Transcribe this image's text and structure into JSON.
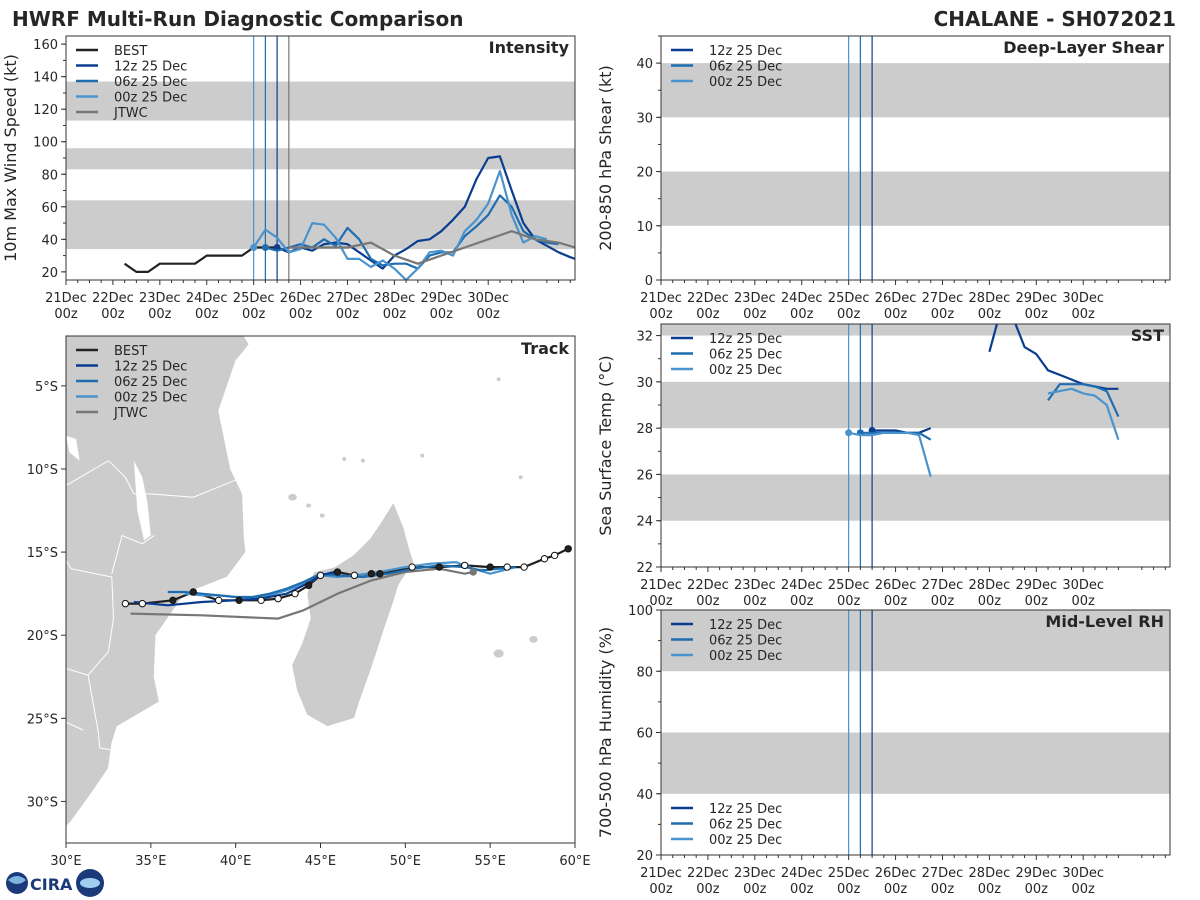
{
  "header": {
    "left_title": "HWRF Multi-Run Diagnostic Comparison",
    "right_title": "CHALANE - SH072021"
  },
  "logo": {
    "text": "CIRA"
  },
  "colors": {
    "best": "#222222",
    "run12z": "#0a3d8f",
    "run06z": "#1f6db0",
    "run00z": "#4a93cc",
    "jtwc": "#777777",
    "band": "#cccccc",
    "land": "#cccccc"
  },
  "time_axis": {
    "tick_labels": [
      [
        "21Dec",
        "00z"
      ],
      [
        "22Dec",
        "00z"
      ],
      [
        "23Dec",
        "00z"
      ],
      [
        "24Dec",
        "00z"
      ],
      [
        "25Dec",
        "00z"
      ],
      [
        "26Dec",
        "00z"
      ],
      [
        "27Dec",
        "00z"
      ],
      [
        "28Dec",
        "00z"
      ],
      [
        "29Dec",
        "00z"
      ],
      [
        "30Dec",
        "00z"
      ]
    ]
  },
  "chart_data": [
    {
      "id": "intensity",
      "type": "line",
      "title": "Intensity",
      "ylabel": "10m Max Wind Speed (kt)",
      "xlim_days": [
        0,
        10.85
      ],
      "ylim": [
        15,
        165
      ],
      "yticks": [
        20,
        40,
        60,
        80,
        100,
        120,
        140,
        160
      ],
      "bands": [
        [
          34,
          64
        ],
        [
          83,
          96
        ],
        [
          113,
          137
        ]
      ],
      "init_lines_days": [
        4.0,
        4.25,
        4.5,
        4.75
      ],
      "legend": [
        "BEST",
        "12z 25 Dec",
        "06z 25 Dec",
        "00z 25 Dec",
        "JTWC"
      ],
      "series": [
        {
          "name": "BEST",
          "color_key": "best",
          "x": [
            1.25,
            1.5,
            1.75,
            2.0,
            2.25,
            2.5,
            2.75,
            3.0,
            3.25,
            3.5,
            3.75,
            4.0,
            4.25,
            4.5
          ],
          "y": [
            25,
            20,
            20,
            25,
            25,
            25,
            25,
            30,
            30,
            30,
            30,
            35,
            35,
            35
          ]
        },
        {
          "name": "12z 25 Dec",
          "color_key": "run12z",
          "x": [
            4.5,
            4.75,
            5.0,
            5.25,
            5.5,
            5.75,
            6.0,
            6.25,
            6.5,
            6.75,
            7.0,
            7.25,
            7.5,
            7.75,
            8.0,
            8.25,
            8.5,
            8.75,
            9.0,
            9.25,
            9.5,
            9.75,
            10.0,
            10.25,
            10.5,
            10.75,
            10.85
          ],
          "y": [
            35,
            32,
            35,
            33,
            37,
            38,
            37,
            32,
            27,
            22,
            30,
            34,
            39,
            40,
            45,
            52,
            60,
            77,
            90,
            91,
            70,
            50,
            40,
            36,
            32,
            29,
            28
          ]
        },
        {
          "name": "06z 25 Dec",
          "color_key": "run06z",
          "x": [
            4.25,
            4.5,
            4.75,
            5.0,
            5.25,
            5.5,
            5.75,
            6.0,
            6.25,
            6.5,
            6.75,
            7.0,
            7.25,
            7.5,
            7.75,
            8.0,
            8.25,
            8.5,
            8.75,
            9.0,
            9.25,
            9.5,
            9.75,
            10.0,
            10.25,
            10.5
          ],
          "y": [
            35,
            33,
            35,
            37,
            35,
            40,
            36,
            47,
            40,
            28,
            24,
            25,
            25,
            22,
            30,
            32,
            32,
            42,
            48,
            55,
            67,
            60,
            45,
            40,
            38,
            37
          ]
        },
        {
          "name": "00z 25 Dec",
          "color_key": "run00z",
          "x": [
            4.0,
            4.25,
            4.5,
            4.75,
            5.0,
            5.25,
            5.5,
            5.75,
            6.0,
            6.25,
            6.5,
            6.75,
            7.0,
            7.25,
            7.5,
            7.75,
            8.0,
            8.25,
            8.5,
            8.75,
            9.0,
            9.25,
            9.5,
            9.75,
            10.0,
            10.25
          ],
          "y": [
            35,
            46,
            41,
            32,
            34,
            50,
            49,
            41,
            28,
            28,
            23,
            27,
            22,
            15,
            22,
            32,
            33,
            30,
            45,
            52,
            62,
            82,
            55,
            38,
            42,
            40
          ]
        },
        {
          "name": "JTWC",
          "color_key": "jtwc",
          "x": [
            4.75,
            5.0,
            5.5,
            6.0,
            6.5,
            7.0,
            7.5,
            8.0,
            8.5,
            9.0,
            9.5,
            10.0,
            10.5,
            10.85
          ],
          "y": [
            35,
            35,
            35,
            35,
            38,
            30,
            25,
            30,
            35,
            40,
            45,
            40,
            38,
            35
          ]
        }
      ]
    },
    {
      "id": "shear",
      "type": "line",
      "title": "Deep-Layer Shear",
      "ylabel": "200-850 hPa Shear (kt)",
      "xlim_days": [
        0,
        10.85
      ],
      "ylim": [
        0,
        45
      ],
      "yticks": [
        0,
        10,
        20,
        30,
        40
      ],
      "bands": [
        [
          10,
          20
        ],
        [
          30,
          40
        ]
      ],
      "init_lines_days": [
        4.0,
        4.25,
        4.5
      ],
      "legend": [
        "12z 25 Dec",
        "06z 25 Dec",
        "00z 25 Dec"
      ],
      "series": []
    },
    {
      "id": "sst",
      "type": "line",
      "title": "SST",
      "ylabel": "Sea Surface Temp (°C)",
      "xlim_days": [
        0,
        10.85
      ],
      "ylim": [
        22,
        32.5
      ],
      "yticks": [
        22,
        24,
        26,
        28,
        30,
        32
      ],
      "bands": [
        [
          24,
          26
        ],
        [
          28,
          30
        ],
        [
          32,
          32.5
        ]
      ],
      "init_lines_days": [
        4.0,
        4.25,
        4.5
      ],
      "legend": [
        "12z 25 Dec",
        "06z 25 Dec",
        "00z 25 Dec"
      ],
      "series": [
        {
          "name": "12z 25 Dec",
          "color_key": "run12z",
          "x": [
            4.5,
            4.75,
            5.0,
            5.25,
            5.5,
            5.75,
            7.0,
            7.2,
            7.5,
            7.75,
            8.0,
            8.25,
            8.5,
            8.75,
            9.0,
            9.25,
            9.5,
            9.75
          ],
          "y": [
            27.9,
            27.9,
            27.9,
            27.8,
            27.8,
            28.0,
            31.3,
            32.8,
            32.8,
            31.5,
            31.2,
            30.5,
            30.3,
            30.1,
            29.9,
            29.8,
            29.7,
            29.7
          ]
        },
        {
          "name": "06z 25 Dec",
          "color_key": "run06z",
          "x": [
            4.25,
            4.5,
            4.75,
            5.0,
            5.25,
            5.5,
            5.75,
            8.25,
            8.5,
            8.75,
            9.0,
            9.25,
            9.5,
            9.75
          ],
          "y": [
            27.8,
            27.8,
            27.8,
            27.8,
            27.8,
            27.8,
            27.5,
            29.2,
            29.9,
            29.9,
            29.9,
            29.8,
            29.6,
            28.5
          ]
        },
        {
          "name": "00z 25 Dec",
          "color_key": "run00z",
          "x": [
            4.0,
            4.25,
            4.5,
            4.75,
            5.0,
            5.25,
            5.5,
            5.75,
            8.25,
            8.5,
            8.75,
            9.0,
            9.25,
            9.5,
            9.75
          ],
          "y": [
            27.8,
            27.7,
            27.7,
            27.8,
            27.8,
            27.8,
            27.7,
            25.9,
            29.5,
            29.6,
            29.7,
            29.5,
            29.4,
            29.0,
            27.5
          ]
        }
      ]
    },
    {
      "id": "rh",
      "type": "line",
      "title": "Mid-Level RH",
      "ylabel": "700-500 hPa Humidity (%)",
      "xlim_days": [
        0,
        10.85
      ],
      "ylim": [
        20,
        100
      ],
      "yticks": [
        20,
        40,
        60,
        80,
        100
      ],
      "bands": [
        [
          40,
          60
        ],
        [
          80,
          100
        ]
      ],
      "init_lines_days": [
        4.0,
        4.25,
        4.5
      ],
      "legend": [
        "12z 25 Dec",
        "06z 25 Dec",
        "00z 25 Dec"
      ],
      "series": []
    },
    {
      "id": "track",
      "type": "scatter",
      "title": "Track",
      "xlim": [
        30,
        60
      ],
      "ylim": [
        -32.5,
        -2
      ],
      "xtick_labels": [
        "30°E",
        "35°E",
        "40°E",
        "45°E",
        "50°E",
        "55°E",
        "60°E"
      ],
      "ytick_labels": [
        "5°S",
        "10°S",
        "15°S",
        "20°S",
        "25°S",
        "30°S"
      ],
      "legend": [
        "BEST",
        "12z 25 Dec",
        "06z 25 Dec",
        "00z 25 Dec",
        "JTWC"
      ],
      "series": [
        {
          "name": "BEST",
          "color_key": "best",
          "lon": [
            59.6,
            58.8,
            58.2,
            57.0,
            56.0,
            55.0,
            53.5,
            52.0,
            50.4,
            48.5,
            48.0,
            47.0,
            46.0,
            45.0,
            44.3,
            43.5,
            42.5,
            41.5,
            40.2,
            39.0,
            37.5,
            36.3,
            34.5,
            33.5
          ],
          "lat": [
            -14.8,
            -15.2,
            -15.4,
            -15.9,
            -15.9,
            -15.9,
            -15.8,
            -15.9,
            -15.9,
            -16.3,
            -16.3,
            -16.4,
            -16.2,
            -16.4,
            -17.0,
            -17.5,
            -17.8,
            -17.9,
            -17.9,
            -17.9,
            -17.4,
            -17.9,
            -18.1,
            -18.1
          ],
          "filled": [
            1,
            0,
            0,
            0,
            0,
            1,
            0,
            1,
            0,
            1,
            1,
            0,
            1,
            0,
            1,
            0,
            0,
            0,
            1,
            0,
            1,
            1,
            0,
            0
          ]
        },
        {
          "name": "12z 25 Dec",
          "color_key": "run12z",
          "lon": [
            45.8,
            45.0,
            44.2,
            43.0,
            41.5,
            40.0,
            38.0,
            36.0,
            34.0
          ],
          "lat": [
            -16.2,
            -16.4,
            -16.9,
            -17.5,
            -17.8,
            -17.9,
            -18.0,
            -18.2,
            -18.0
          ],
          "filled": [
            0,
            0,
            0,
            0,
            0,
            0,
            0,
            0,
            0
          ]
        },
        {
          "name": "06z 25 Dec",
          "color_key": "run06z",
          "lon": [
            56.5,
            55.5,
            54.5,
            53.5,
            52.0,
            50.5,
            49.0,
            47.5,
            46.0,
            45.0,
            44.0,
            43.0,
            42.0,
            41.0,
            40.0,
            39.0,
            38.0,
            37.0,
            36.0
          ],
          "lat": [
            -15.9,
            -16.0,
            -16.1,
            -15.9,
            -15.8,
            -16.0,
            -16.3,
            -16.5,
            -16.4,
            -16.3,
            -16.8,
            -17.2,
            -17.5,
            -17.7,
            -17.7,
            -17.6,
            -17.5,
            -17.4,
            -17.4
          ],
          "filled": [
            0,
            0,
            0,
            0,
            0,
            0,
            0,
            0,
            0,
            0,
            0,
            0,
            0,
            0,
            0,
            0,
            0,
            0,
            0
          ]
        },
        {
          "name": "00z 25 Dec",
          "color_key": "run00z",
          "lon": [
            56.5,
            55.0,
            54.0,
            53.0,
            51.5,
            50.0,
            48.5,
            47.0,
            46.0,
            45.0,
            44.0,
            43.0,
            42.0,
            41.0,
            40.0,
            39.0,
            38.0,
            37.0
          ],
          "lat": [
            -15.9,
            -16.3,
            -16.0,
            -15.6,
            -15.7,
            -15.9,
            -16.2,
            -16.4,
            -16.5,
            -16.4,
            -16.9,
            -17.3,
            -17.6,
            -17.8,
            -17.7,
            -17.6,
            -17.6,
            -17.5
          ],
          "filled": [
            0,
            0,
            0,
            0,
            0,
            0,
            0,
            0,
            0,
            0,
            0,
            0,
            0,
            0,
            0,
            0,
            0,
            0
          ]
        },
        {
          "name": "JTWC",
          "color_key": "jtwc",
          "lon": [
            54.0,
            53.5,
            52.0,
            50.0,
            48.0,
            46.0,
            44.0,
            42.5,
            38.0,
            33.8
          ],
          "lat": [
            -16.2,
            -16.3,
            -16.0,
            -16.2,
            -16.7,
            -17.5,
            -18.5,
            -19.0,
            -18.8,
            -18.7
          ],
          "filled": [
            1,
            0,
            0,
            0,
            0,
            0,
            0,
            0,
            0,
            0
          ]
        }
      ]
    }
  ]
}
